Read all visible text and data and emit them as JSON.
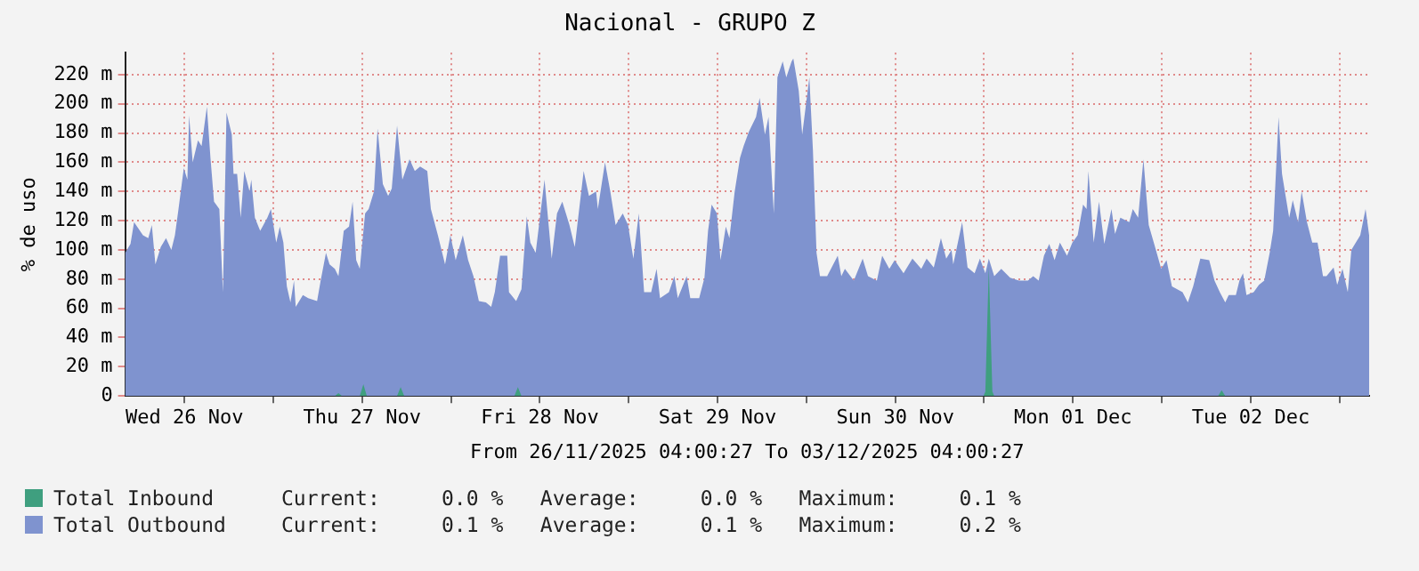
{
  "chart_data": {
    "type": "area",
    "title": "Nacional - GRUPO Z",
    "xlabel": "From 26/11/2025 04:00:27 To 03/12/2025 04:00:27",
    "ylabel": "% de uso",
    "legend": "bottom",
    "grid": true,
    "marker": "none",
    "xlim": [
      "2025-11-26T04:00",
      "2025-12-03T04:00"
    ],
    "xticks": [
      {
        "value": "2025-11-26T12:00",
        "label": "Wed 26 Nov"
      },
      {
        "value": "2025-11-27T00:00",
        "label": null
      },
      {
        "value": "2025-11-27T12:00",
        "label": "Thu 27 Nov"
      },
      {
        "value": "2025-11-28T00:00",
        "label": null
      },
      {
        "value": "2025-11-28T12:00",
        "label": "Fri 28 Nov"
      },
      {
        "value": "2025-11-29T00:00",
        "label": null
      },
      {
        "value": "2025-11-29T12:00",
        "label": "Sat 29 Nov"
      },
      {
        "value": "2025-11-30T00:00",
        "label": null
      },
      {
        "value": "2025-11-30T12:00",
        "label": "Sun 30 Nov"
      },
      {
        "value": "2025-12-01T00:00",
        "label": null
      },
      {
        "value": "2025-12-01T12:00",
        "label": "Mon 01 Dec"
      },
      {
        "value": "2025-12-02T00:00",
        "label": null
      },
      {
        "value": "2025-12-02T12:00",
        "label": "Tue 02 Dec"
      },
      {
        "value": "2025-12-03T00:00",
        "label": null
      }
    ],
    "ylim": [
      0,
      235
    ],
    "yticks": [
      0,
      {
        "value": 20,
        "label": "20 m"
      },
      {
        "value": 40,
        "label": "40 m"
      },
      {
        "value": 60,
        "label": "60 m"
      },
      {
        "value": 80,
        "label": "80 m"
      },
      {
        "value": 100,
        "label": "100 m"
      },
      {
        "value": 120,
        "label": "120 m"
      },
      {
        "value": 140,
        "label": "140 m"
      },
      {
        "value": 160,
        "label": "160 m"
      },
      {
        "value": 180,
        "label": "180 m"
      },
      {
        "value": 200,
        "label": "200 m"
      },
      {
        "value": 220,
        "label": "220 m"
      }
    ],
    "annotations": [
      "Current:     0.0 %   Average:     0.0 %   Maximum:     0.1 %",
      "Current:     0.1 %   Average:     0.1 %   Maximum:     0.2 %"
    ],
    "series": [
      {
        "name": "Total Inbound",
        "color": "#3f9f7f",
        "x": [
          "2025-11-26T04:00",
          "2025-11-27T08:19",
          "2025-11-27T08:48",
          "2025-11-27T09:17",
          "2025-11-27T11:41",
          "2025-11-27T12:10",
          "2025-11-27T12:38",
          "2025-11-27T16:43",
          "2025-11-27T17:12",
          "2025-11-27T17:41",
          "2025-11-28T08:34",
          "2025-11-28T09:02",
          "2025-11-28T09:31",
          "2025-11-30T23:55",
          "2025-12-01T00:10",
          "2025-12-01T00:38",
          "2025-12-01T01:07",
          "2025-12-01T01:22",
          "2025-12-02T07:36",
          "2025-12-02T08:05",
          "2025-12-02T08:34",
          "2025-12-03T04:00"
        ],
        "values": [
          0,
          0,
          2,
          0,
          0,
          8,
          0,
          0,
          6,
          0,
          0,
          6,
          0,
          0,
          3,
          88,
          3,
          0,
          0,
          4,
          0,
          0
        ]
      },
      {
        "name": "Total Outbound",
        "color": "#7f93cf",
        "x": [
          "2025-11-26T04:00",
          "2025-11-26T04:43",
          "2025-11-26T05:12",
          "2025-11-26T06:24",
          "2025-11-26T07:07",
          "2025-11-26T07:36",
          "2025-11-26T08:05",
          "2025-11-26T08:48",
          "2025-11-26T09:31",
          "2025-11-26T10:14",
          "2025-11-26T10:43",
          "2025-11-26T11:12",
          "2025-11-26T11:55",
          "2025-11-26T12:24",
          "2025-11-26T12:38",
          "2025-11-26T13:07",
          "2025-11-26T13:50",
          "2025-11-26T14:19",
          "2025-11-26T15:02",
          "2025-11-26T15:31",
          "2025-11-26T16:00",
          "2025-11-26T16:43",
          "2025-11-26T17:12",
          "2025-11-26T17:41",
          "2025-11-26T18:24",
          "2025-11-26T18:38",
          "2025-11-26T19:07",
          "2025-11-26T19:36",
          "2025-11-26T20:05",
          "2025-11-26T20:48",
          "2025-11-26T21:02",
          "2025-11-26T21:31",
          "2025-11-26T22:14",
          "2025-11-26T23:12",
          "2025-11-26T23:41",
          "2025-11-27T00:24",
          "2025-11-27T00:53",
          "2025-11-27T01:22",
          "2025-11-27T01:50",
          "2025-11-27T02:19",
          "2025-11-27T02:48",
          "2025-11-27T03:02",
          "2025-11-27T04:00",
          "2025-11-27T04:43",
          "2025-11-27T05:55",
          "2025-11-27T06:24",
          "2025-11-27T07:07",
          "2025-11-27T07:36",
          "2025-11-27T08:19",
          "2025-11-27T08:48",
          "2025-11-27T09:31",
          "2025-11-27T10:14",
          "2025-11-27T10:43",
          "2025-11-27T11:12",
          "2025-11-27T11:41",
          "2025-11-27T12:24",
          "2025-11-27T12:53",
          "2025-11-27T13:36",
          "2025-11-27T14:05",
          "2025-11-27T14:48",
          "2025-11-27T15:31",
          "2025-11-27T16:00",
          "2025-11-27T16:43",
          "2025-11-27T17:26",
          "2025-11-27T18:24",
          "2025-11-27T19:07",
          "2025-11-27T19:50",
          "2025-11-27T20:48",
          "2025-11-27T21:17",
          "2025-11-27T22:14",
          "2025-11-27T23:12",
          "2025-11-27T23:55",
          "2025-11-28T00:38",
          "2025-11-28T01:36",
          "2025-11-28T02:19",
          "2025-11-28T03:02",
          "2025-11-28T03:46",
          "2025-11-28T04:43",
          "2025-11-28T05:26",
          "2025-11-28T05:55",
          "2025-11-28T06:38",
          "2025-11-28T07:36",
          "2025-11-28T07:50",
          "2025-11-28T08:48",
          "2025-11-28T09:31",
          "2025-11-28T10:14",
          "2025-11-28T10:43",
          "2025-11-28T11:26",
          "2025-11-28T12:38",
          "2025-11-28T13:36",
          "2025-11-28T14:19",
          "2025-11-28T15:02",
          "2025-11-28T16:00",
          "2025-11-28T16:43",
          "2025-11-28T17:55",
          "2025-11-28T18:38",
          "2025-11-28T19:36",
          "2025-11-28T19:50",
          "2025-11-28T20:48",
          "2025-11-28T21:31",
          "2025-11-28T22:14",
          "2025-11-28T23:12",
          "2025-11-28T23:55",
          "2025-11-29T00:38",
          "2025-11-29T01:22",
          "2025-11-29T02:05",
          "2025-11-29T03:02",
          "2025-11-29T03:46",
          "2025-11-29T04:14",
          "2025-11-29T05:26",
          "2025-11-29T06:10",
          "2025-11-29T06:38",
          "2025-11-29T07:50",
          "2025-11-29T08:19",
          "2025-11-29T09:31",
          "2025-11-29T10:14",
          "2025-11-29T10:43",
          "2025-11-29T11:12",
          "2025-11-29T11:55",
          "2025-11-29T12:24",
          "2025-11-29T13:07",
          "2025-11-29T13:36",
          "2025-11-29T14:19",
          "2025-11-29T15:02",
          "2025-11-29T15:31",
          "2025-11-29T16:14",
          "2025-11-29T17:12",
          "2025-11-29T17:41",
          "2025-11-29T18:24",
          "2025-11-29T18:53",
          "2025-11-29T19:36",
          "2025-11-29T20:05",
          "2025-11-29T20:48",
          "2025-11-29T21:17",
          "2025-11-29T22:00",
          "2025-11-29T22:14",
          "2025-11-29T22:58",
          "2025-11-29T23:26",
          "2025-11-30T00:24",
          "2025-11-30T00:53",
          "2025-11-30T01:22",
          "2025-11-30T01:50",
          "2025-11-30T02:48",
          "2025-11-30T04:14",
          "2025-11-30T04:43",
          "2025-11-30T05:12",
          "2025-11-30T06:24",
          "2025-11-30T07:36",
          "2025-11-30T08:19",
          "2025-11-30T09:31",
          "2025-11-30T10:14",
          "2025-11-30T11:12",
          "2025-11-30T11:55",
          "2025-11-30T13:07",
          "2025-11-30T14:19",
          "2025-11-30T15:31",
          "2025-11-30T16:14",
          "2025-11-30T17:12",
          "2025-11-30T18:10",
          "2025-11-30T18:53",
          "2025-11-30T19:36",
          "2025-11-30T19:50",
          "2025-11-30T21:02",
          "2025-11-30T21:46",
          "2025-11-30T22:43",
          "2025-11-30T23:26",
          "2025-12-01T00:10",
          "2025-12-01T00:38",
          "2025-12-01T01:22",
          "2025-12-01T02:19",
          "2025-12-01T03:31",
          "2025-12-01T04:43",
          "2025-12-01T05:55",
          "2025-12-01T06:38",
          "2025-12-01T07:22",
          "2025-12-01T08:05",
          "2025-12-01T08:48",
          "2025-12-01T09:31",
          "2025-12-01T10:14",
          "2025-12-01T11:12",
          "2025-12-01T11:55",
          "2025-12-01T12:38",
          "2025-12-01T13:22",
          "2025-12-01T13:50",
          "2025-12-01T14:05",
          "2025-12-01T14:48",
          "2025-12-01T15:31",
          "2025-12-01T16:14",
          "2025-12-01T17:12",
          "2025-12-01T17:41",
          "2025-12-01T18:24",
          "2025-12-01T19:36",
          "2025-12-01T20:05",
          "2025-12-01T20:48",
          "2025-12-01T21:31",
          "2025-12-01T22:14",
          "2025-12-01T23:12",
          "2025-12-01T23:55",
          "2025-12-02T00:38",
          "2025-12-02T01:22",
          "2025-12-02T02:48",
          "2025-12-02T03:31",
          "2025-12-02T04:14",
          "2025-12-02T05:12",
          "2025-12-02T06:24",
          "2025-12-02T07:07",
          "2025-12-02T07:50",
          "2025-12-02T08:34",
          "2025-12-02T09:02",
          "2025-12-02T10:00",
          "2025-12-02T10:29",
          "2025-12-02T10:58",
          "2025-12-02T11:26",
          "2025-12-02T12:24",
          "2025-12-02T13:07",
          "2025-12-02T13:50",
          "2025-12-02T14:34",
          "2025-12-02T15:02",
          "2025-12-02T15:46",
          "2025-12-02T16:14",
          "2025-12-02T17:12",
          "2025-12-02T17:41",
          "2025-12-02T18:24",
          "2025-12-02T18:53",
          "2025-12-02T19:36",
          "2025-12-02T20:19",
          "2025-12-02T21:02",
          "2025-12-02T21:46",
          "2025-12-02T22:14",
          "2025-12-02T23:12",
          "2025-12-02T23:41",
          "2025-12-03T00:24",
          "2025-12-03T01:07",
          "2025-12-03T01:36",
          "2025-12-03T02:48",
          "2025-12-03T03:31",
          "2025-12-03T04:00"
        ],
        "values": [
          98,
          104,
          119,
          110,
          108,
          117,
          90,
          102,
          108,
          100,
          110,
          128,
          156,
          148,
          192,
          160,
          175,
          171,
          198,
          163,
          133,
          128,
          71,
          194,
          179,
          152,
          152,
          122,
          154,
          140,
          148,
          122,
          113,
          122,
          128,
          105,
          116,
          105,
          75,
          64,
          79,
          61,
          69,
          67,
          65,
          79,
          98,
          90,
          87,
          82,
          113,
          116,
          133,
          93,
          87,
          125,
          128,
          140,
          183,
          145,
          137,
          142,
          185,
          148,
          162,
          154,
          157,
          154,
          128,
          110,
          90,
          110,
          93,
          110,
          93,
          82,
          65,
          64,
          61,
          71,
          96,
          96,
          71,
          65,
          73,
          123,
          105,
          98,
          148,
          94,
          125,
          133,
          117,
          102,
          154,
          137,
          140,
          128,
          160,
          140,
          117,
          125,
          117,
          94,
          125,
          71,
          71,
          87,
          67,
          71,
          82,
          67,
          82,
          67,
          67,
          81,
          113,
          131,
          125,
          93,
          116,
          108,
          140,
          163,
          171,
          181,
          191,
          204,
          179,
          191,
          125,
          218,
          229,
          218,
          229,
          231,
          209,
          179,
          218,
          168,
          98,
          82,
          82,
          96,
          82,
          87,
          79,
          94,
          82,
          79,
          96,
          87,
          93,
          84,
          94,
          87,
          94,
          88,
          108,
          94,
          100,
          90,
          119,
          88,
          84,
          94,
          84,
          94,
          82,
          87,
          81,
          79,
          79,
          82,
          79,
          96,
          104,
          93,
          105,
          96,
          105,
          110,
          131,
          128,
          154,
          105,
          133,
          104,
          128,
          111,
          122,
          119,
          128,
          122,
          162,
          117,
          100,
          87,
          93,
          75,
          71,
          64,
          75,
          94,
          93,
          79,
          71,
          64,
          69,
          69,
          79,
          84,
          69,
          71,
          76,
          79,
          98,
          113,
          191,
          152,
          122,
          134,
          119,
          140,
          119,
          105,
          105,
          82,
          82,
          88,
          76,
          87,
          71,
          100,
          110,
          128,
          110
        ]
      }
    ]
  }
}
